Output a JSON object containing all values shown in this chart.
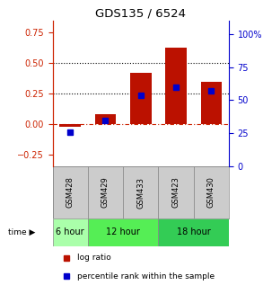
{
  "title": "GDS135 / 6524",
  "samples": [
    "GSM428",
    "GSM429",
    "GSM433",
    "GSM423",
    "GSM430"
  ],
  "log_ratio": [
    -0.02,
    0.08,
    0.42,
    0.63,
    0.35
  ],
  "percentile_rank": [
    26,
    35,
    54,
    60,
    57
  ],
  "time_groups": [
    {
      "label": "6 hour",
      "start": 0,
      "end": 1,
      "color": "#AAFFAA"
    },
    {
      "label": "12 hour",
      "start": 1,
      "end": 3,
      "color": "#55EE55"
    },
    {
      "label": "18 hour",
      "start": 3,
      "end": 5,
      "color": "#33CC55"
    }
  ],
  "bar_color": "#BB1100",
  "dot_color": "#0000CC",
  "ylim_left": [
    -0.35,
    0.85
  ],
  "ylim_right": [
    0,
    110
  ],
  "yticks_left": [
    -0.25,
    0,
    0.25,
    0.5,
    0.75
  ],
  "yticks_right": [
    0,
    25,
    50,
    75,
    100
  ],
  "hline_y": 0,
  "dotted_lines": [
    0.25,
    0.5
  ],
  "background_color": "#ffffff",
  "left_axis_color": "#CC2200",
  "right_axis_color": "#0000CC",
  "sample_bg": "#CCCCCC",
  "bar_width": 0.6
}
